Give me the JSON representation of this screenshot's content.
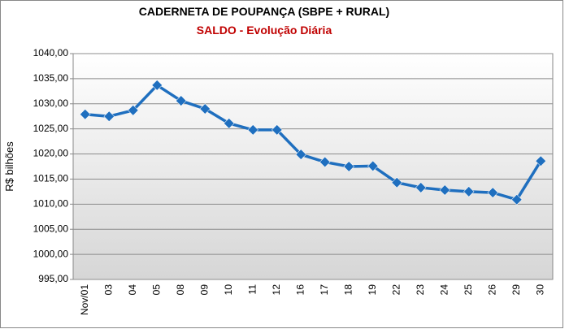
{
  "chart_data": {
    "type": "line",
    "title": "CADERNETA DE POUPANÇA (SBPE + RURAL)",
    "subtitle": "SALDO - Evolução Diária",
    "y_label": "R$ bilhões",
    "categories": [
      "Nov/01",
      "03",
      "04",
      "05",
      "08",
      "09",
      "10",
      "11",
      "12",
      "16",
      "17",
      "18",
      "19",
      "22",
      "23",
      "24",
      "25",
      "26",
      "29",
      "30"
    ],
    "series": [
      {
        "name": "Saldo",
        "color": "#1f6fbf",
        "values": [
          1027.9,
          1027.5,
          1028.7,
          1033.7,
          1030.6,
          1029.0,
          1026.1,
          1024.8,
          1024.8,
          1019.9,
          1018.4,
          1017.5,
          1017.6,
          1014.3,
          1013.3,
          1012.8,
          1012.5,
          1012.3,
          1010.9,
          1018.6
        ]
      }
    ],
    "ylim": [
      995,
      1040
    ],
    "yticks": [
      {
        "value": 995,
        "label": "995,00"
      },
      {
        "value": 1000,
        "label": "1000,00"
      },
      {
        "value": 1005,
        "label": "1005,00"
      },
      {
        "value": 1010,
        "label": "1010,00"
      },
      {
        "value": 1015,
        "label": "1015,00"
      },
      {
        "value": 1020,
        "label": "1020,00"
      },
      {
        "value": 1025,
        "label": "1025,00"
      },
      {
        "value": 1030,
        "label": "1030,00"
      },
      {
        "value": 1035,
        "label": "1035,00"
      },
      {
        "value": 1040,
        "label": "1040,00"
      }
    ],
    "grid": true
  }
}
